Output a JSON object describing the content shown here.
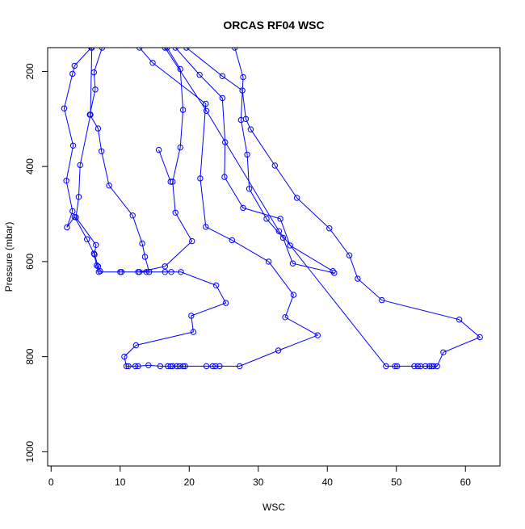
{
  "chart_data": {
    "type": "scatter",
    "title": "ORCAS RF04 WSC",
    "xlabel": "WSC",
    "ylabel": "Pressure (mbar)",
    "xlim": [
      -0.5,
      65
    ],
    "ylim": [
      1030,
      150
    ],
    "y_reversed": true,
    "x_ticks": [
      0,
      10,
      20,
      30,
      40,
      50,
      60
    ],
    "y_ticks": [
      200,
      400,
      600,
      800,
      1000
    ],
    "grid": false,
    "legend": "none",
    "style": {
      "color": "#0000ff",
      "marker": "open-circle",
      "lines": true
    },
    "series": [
      {
        "points": [
          [
            5.8,
            150
          ],
          [
            3.4,
            188
          ],
          [
            3.1,
            205
          ],
          [
            1.9,
            278
          ],
          [
            3.2,
            356
          ],
          [
            2.2,
            430
          ],
          [
            3.1,
            494
          ],
          [
            2.3,
            528
          ],
          [
            3.4,
            506
          ],
          [
            5.2,
            553
          ],
          [
            6.2,
            583
          ],
          [
            6.6,
            608
          ],
          [
            6.9,
            622
          ],
          [
            10.0,
            622
          ],
          [
            10.2,
            622
          ],
          [
            12.6,
            622
          ],
          [
            13.8,
            622
          ],
          [
            14.2,
            622
          ],
          [
            13.6,
            590
          ],
          [
            13.2,
            562
          ],
          [
            11.8,
            503
          ],
          [
            8.4,
            440
          ],
          [
            7.3,
            368
          ],
          [
            6.8,
            320
          ],
          [
            5.6,
            291
          ],
          [
            6.4,
            238
          ],
          [
            6.2,
            202
          ],
          [
            7.4,
            150
          ]
        ]
      },
      {
        "points": [
          [
            5.9,
            150
          ],
          [
            5.7,
            291
          ],
          [
            4.2,
            397
          ],
          [
            4.0,
            464
          ],
          [
            3.6,
            507
          ],
          [
            6.5,
            565
          ],
          [
            6.3,
            585
          ],
          [
            6.8,
            610
          ],
          [
            7.1,
            620
          ]
        ]
      },
      {
        "points": [
          [
            16.8,
            150
          ],
          [
            18.7,
            195
          ],
          [
            19.1,
            281
          ],
          [
            18.7,
            360
          ],
          [
            17.6,
            432
          ],
          [
            18.0,
            497
          ],
          [
            20.4,
            557
          ],
          [
            16.5,
            610
          ],
          [
            12.8,
            622
          ],
          [
            14.2,
            622
          ],
          [
            16.5,
            622
          ],
          [
            17.4,
            622
          ],
          [
            18.8,
            622
          ],
          [
            23.9,
            650
          ],
          [
            25.3,
            687
          ],
          [
            20.3,
            714
          ],
          [
            20.6,
            748
          ],
          [
            12.3,
            776
          ],
          [
            10.6,
            800
          ],
          [
            10.9,
            820
          ],
          [
            11.2,
            820
          ],
          [
            12.2,
            820
          ],
          [
            12.6,
            820
          ],
          [
            14.1,
            818
          ],
          [
            15.8,
            820
          ],
          [
            16.9,
            820
          ],
          [
            17.3,
            820
          ],
          [
            17.6,
            820
          ],
          [
            18.2,
            820
          ],
          [
            18.6,
            820
          ],
          [
            19.1,
            820
          ],
          [
            19.4,
            820
          ],
          [
            22.5,
            820
          ],
          [
            23.4,
            820
          ],
          [
            23.8,
            820
          ],
          [
            24.4,
            820
          ],
          [
            27.3,
            820
          ],
          [
            32.9,
            787
          ],
          [
            38.6,
            755
          ],
          [
            33.9,
            717
          ],
          [
            35.1,
            670
          ],
          [
            31.5,
            600
          ],
          [
            26.2,
            555
          ],
          [
            22.4,
            527
          ],
          [
            21.6,
            425
          ],
          [
            22.4,
            268
          ],
          [
            14.7,
            182
          ],
          [
            12.8,
            150
          ]
        ]
      },
      {
        "points": [
          [
            15.6,
            365
          ],
          [
            17.3,
            432
          ]
        ]
      },
      {
        "points": [
          [
            19.6,
            150
          ],
          [
            24.8,
            210
          ],
          [
            27.7,
            240
          ],
          [
            28.2,
            300
          ],
          [
            28.9,
            322
          ],
          [
            32.4,
            398
          ],
          [
            35.6,
            466
          ],
          [
            40.3,
            530
          ],
          [
            43.2,
            587
          ],
          [
            44.4,
            636
          ],
          [
            47.9,
            681
          ],
          [
            59.1,
            722
          ],
          [
            62.1,
            759
          ],
          [
            56.8,
            791
          ],
          [
            55.9,
            820
          ],
          [
            55.4,
            820
          ],
          [
            55.1,
            820
          ],
          [
            54.8,
            820
          ],
          [
            54.2,
            820
          ],
          [
            53.5,
            820
          ],
          [
            53.1,
            820
          ],
          [
            52.6,
            820
          ],
          [
            50.1,
            820
          ],
          [
            49.8,
            820
          ],
          [
            48.5,
            820
          ],
          [
            33.0,
            536
          ],
          [
            22.5,
            283
          ],
          [
            16.5,
            150
          ]
        ]
      },
      {
        "points": [
          [
            18.0,
            150
          ],
          [
            21.5,
            207
          ],
          [
            24.8,
            256
          ],
          [
            25.2,
            349
          ],
          [
            25.1,
            422
          ],
          [
            27.8,
            487
          ],
          [
            33.2,
            510
          ],
          [
            34.6,
            566
          ],
          [
            40.8,
            620
          ]
        ]
      },
      {
        "points": [
          [
            26.6,
            150
          ],
          [
            27.8,
            212
          ],
          [
            27.5,
            302
          ],
          [
            28.4,
            375
          ],
          [
            28.7,
            447
          ],
          [
            31.2,
            510
          ],
          [
            33.6,
            550
          ],
          [
            35.0,
            604
          ],
          [
            41.0,
            624
          ]
        ]
      }
    ]
  }
}
